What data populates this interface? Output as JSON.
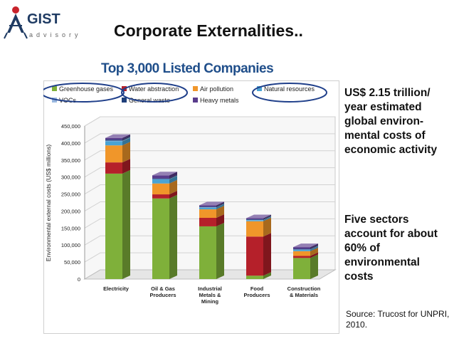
{
  "logo": {
    "name": "GIST",
    "subtitle": "advisory"
  },
  "slide_title": "Corporate Externalities..",
  "chart_data": {
    "type": "bar",
    "stacked": true,
    "title": "Top 3,000 Listed Companies",
    "xlabel": "",
    "ylabel": "Environmental external costs (US$ millions)",
    "ylim": [
      0,
      450000
    ],
    "yticks": [
      "0",
      "50,000",
      "100,000",
      "150,000",
      "200,000",
      "250,000",
      "300,000",
      "350,000",
      "400,000",
      "450,000"
    ],
    "ytick_values": [
      0,
      50000,
      100000,
      150000,
      200000,
      250000,
      300000,
      350000,
      400000,
      450000
    ],
    "categories": [
      "Electricity",
      "Oil & Gas Producers",
      "Industrial Metals & Mining",
      "Food Producers",
      "Construction & Materials"
    ],
    "series": [
      {
        "name": "Greenhouse gases",
        "color": "#7fb03a",
        "values": [
          310000,
          237000,
          155000,
          10000,
          62000
        ]
      },
      {
        "name": "Water abstraction",
        "color": "#b5202a",
        "values": [
          33000,
          12000,
          25000,
          115000,
          6000
        ]
      },
      {
        "name": "Air pollution",
        "color": "#f0962a",
        "values": [
          50000,
          32000,
          25000,
          45000,
          14000
        ]
      },
      {
        "name": "Natural resources",
        "color": "#4aa3d4",
        "values": [
          12000,
          12000,
          5000,
          3000,
          4000
        ]
      },
      {
        "name": "VOCs",
        "color": "#9ab8e0",
        "values": [
          2000,
          1000,
          1000,
          1000,
          1000
        ]
      },
      {
        "name": "General waste",
        "color": "#1f3f7a",
        "values": [
          3000,
          2000,
          2000,
          2000,
          2000
        ]
      },
      {
        "name": "Heavy metals",
        "color": "#5a3c8c",
        "values": [
          5000,
          9000,
          4000,
          3000,
          5000
        ]
      }
    ],
    "grid": true,
    "legend_position": "top"
  },
  "notes": {
    "text1": "US$ 2.15 trillion/ year estimated global environ-mental costs of economic activity",
    "text2": "Five sectors account for about 60% of environmental costs",
    "source": "Source: Trucost for UNPRI, 2010."
  },
  "colors": {
    "highlight": "#1f3f8a",
    "axis": "#999999",
    "panel": "#f7f7f7"
  }
}
